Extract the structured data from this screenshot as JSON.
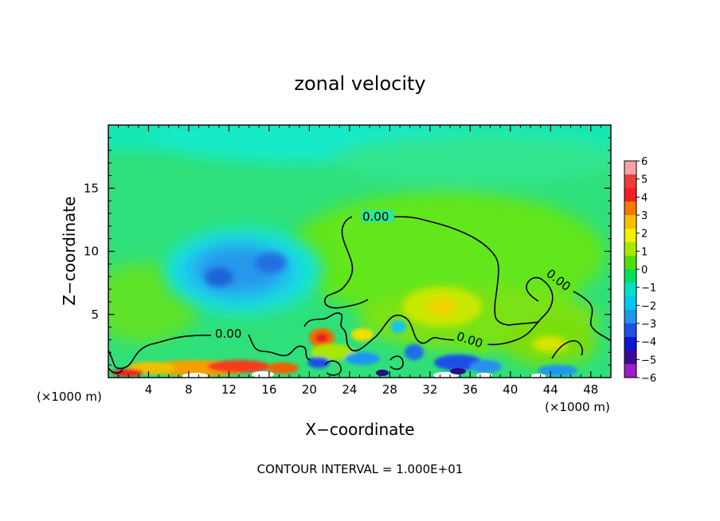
{
  "chart_data": {
    "type": "heatmap",
    "title": "zonal velocity",
    "xlabel": "X−coordinate",
    "ylabel": "Z−coordinate",
    "x_unit_left": "(×1000 m)",
    "x_unit_right": "(×1000 m)",
    "footer": "CONTOUR INTERVAL = 1.000E+01",
    "xlim": [
      0,
      50
    ],
    "ylim": [
      0,
      20
    ],
    "x_ticks": [
      4,
      8,
      12,
      16,
      20,
      24,
      28,
      32,
      36,
      40,
      44,
      48
    ],
    "y_ticks": [
      5,
      10,
      15
    ],
    "colorbar": {
      "min": -6,
      "max": 6,
      "tick_labels": [
        "6",
        "5",
        "4",
        "3",
        "2",
        "1",
        "0",
        "−1",
        "−2",
        "−3",
        "−4",
        "−5",
        "−6"
      ],
      "colors": [
        "#f5a3a3",
        "#ee3a3a",
        "#f51e1e",
        "#f57a00",
        "#f5c000",
        "#f0f000",
        "#a8e800",
        "#50e000",
        "#00e060",
        "#00e0c8",
        "#00c8f0",
        "#1e96f0",
        "#1e50e6",
        "#0a14d2",
        "#3c0a96",
        "#9b1ec8"
      ]
    },
    "contours": [
      {
        "label": "0.00"
      },
      {
        "label": "0.00"
      },
      {
        "label": "0.00"
      },
      {
        "label": "0.00"
      }
    ],
    "features": [
      {
        "name": "negative-core",
        "x": 13,
        "z": 9,
        "value": -3
      },
      {
        "name": "positive-core",
        "x": 33,
        "z": 5.5,
        "value": 2
      },
      {
        "name": "surface-positive",
        "x": 12,
        "z": 0.5,
        "value": 4
      },
      {
        "name": "surface-negative",
        "x": 34,
        "z": 0.5,
        "value": -4
      }
    ]
  }
}
